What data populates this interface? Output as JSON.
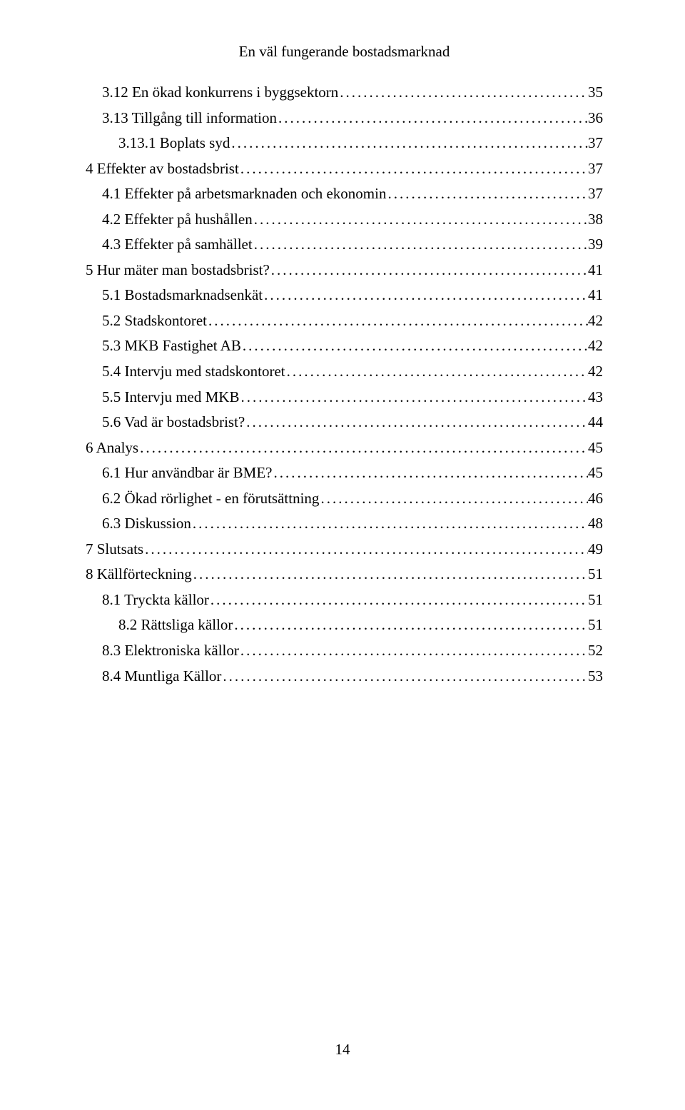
{
  "header": {
    "title": "En väl fungerande bostadsmarknad"
  },
  "colors": {
    "background": "#ffffff",
    "text": "#000000"
  },
  "typography": {
    "font_family": "Times New Roman",
    "body_fontsize_pt": 16,
    "line_height": 1.55
  },
  "toc": {
    "entries": [
      {
        "label": "3.12 En ökad konkurrens i byggsektorn",
        "page": "35",
        "indent": 1
      },
      {
        "label": "3.13 Tillgång till information",
        "page": "36",
        "indent": 1
      },
      {
        "label": "3.13.1 Boplats syd",
        "page": "37",
        "indent": 2
      },
      {
        "label": "4 Effekter av bostadsbrist",
        "page": "37",
        "indent": 0
      },
      {
        "label": "4.1 Effekter på arbetsmarknaden och ekonomin",
        "page": "37",
        "indent": 1
      },
      {
        "label": "4.2 Effekter på hushållen",
        "page": "38",
        "indent": 1
      },
      {
        "label": "4.3 Effekter på samhället",
        "page": "39",
        "indent": 1
      },
      {
        "label": "5 Hur mäter man bostadsbrist?",
        "page": "41",
        "indent": 0
      },
      {
        "label": "5.1 Bostadsmarknadsenkät",
        "page": "41",
        "indent": 1
      },
      {
        "label": "5.2 Stadskontoret",
        "page": "42",
        "indent": 1
      },
      {
        "label": "5.3 MKB Fastighet AB",
        "page": "42",
        "indent": 1
      },
      {
        "label": "5.4 Intervju med stadskontoret",
        "page": "42",
        "indent": 1
      },
      {
        "label": "5.5 Intervju med MKB",
        "page": "43",
        "indent": 1
      },
      {
        "label": "5.6 Vad är bostadsbrist?",
        "page": "44",
        "indent": 1
      },
      {
        "label": "6 Analys",
        "page": "45",
        "indent": 0
      },
      {
        "label": "6.1 Hur användbar är BME?",
        "page": "45",
        "indent": 1
      },
      {
        "label": "6.2 Ökad rörlighet - en förutsättning",
        "page": "46",
        "indent": 1
      },
      {
        "label": "6.3 Diskussion",
        "page": "48",
        "indent": 1
      },
      {
        "label": "7 Slutsats",
        "page": "49",
        "indent": 0
      },
      {
        "label": "8 Källförteckning",
        "page": "51",
        "indent": 0
      },
      {
        "label": "8.1 Tryckta källor",
        "page": "51",
        "indent": 1
      },
      {
        "label": "8.2 Rättsliga källor",
        "page": "51",
        "indent": 2
      },
      {
        "label": "8.3 Elektroniska källor",
        "page": "52",
        "indent": 1
      },
      {
        "label": "8.4 Muntliga Källor",
        "page": "53",
        "indent": 1
      }
    ]
  },
  "footer": {
    "page_number": "14"
  }
}
